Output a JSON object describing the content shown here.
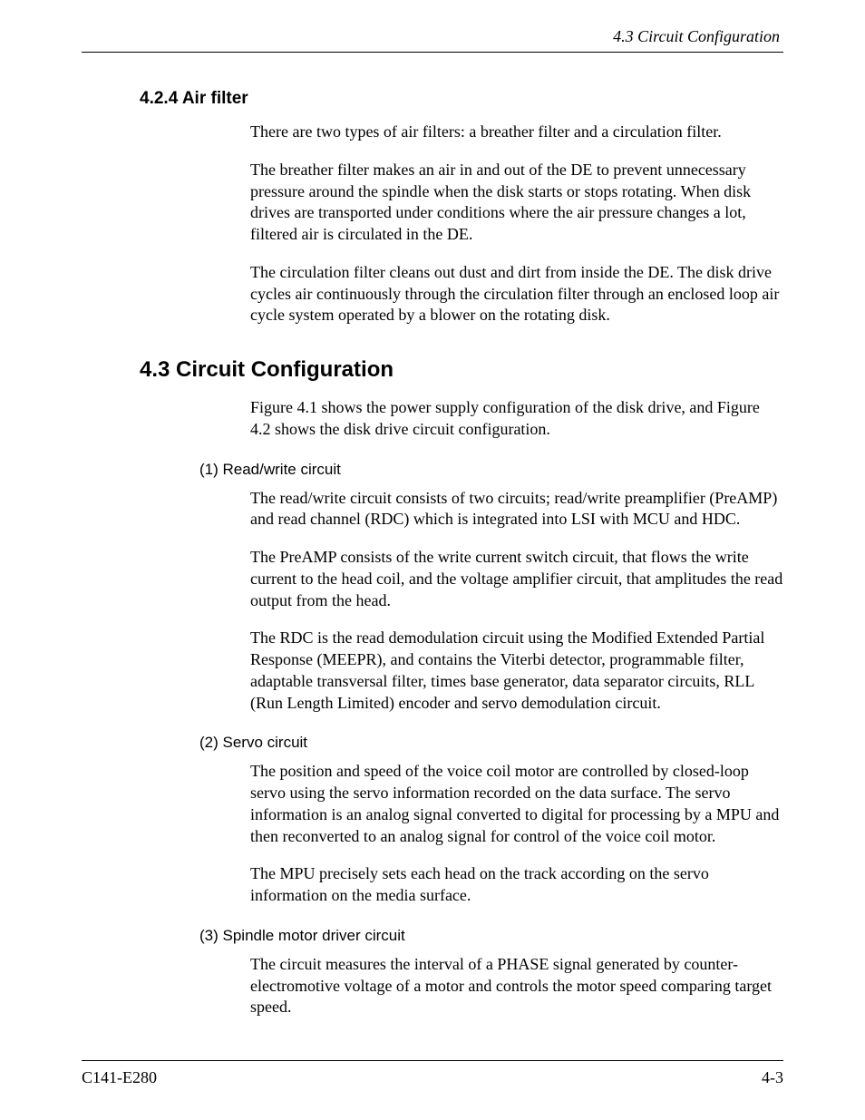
{
  "running_head": "4.3  Circuit Configuration",
  "section_424": {
    "heading": "4.2.4  Air filter",
    "p1": "There are two types of air filters:  a breather filter and a circulation filter.",
    "p2": "The breather filter makes an air in and out of the DE to prevent unnecessary pressure around the spindle when the disk starts or stops rotating.  When disk drives are transported under conditions where the air pressure changes a lot, filtered air is circulated in the DE.",
    "p3": "The circulation filter cleans out dust and dirt from inside the DE.  The disk drive cycles air continuously through the circulation filter through an enclosed loop air cycle system operated by a blower on the rotating disk."
  },
  "section_43": {
    "heading": "4.3  Circuit Configuration",
    "intro": "Figure 4.1 shows the power supply configuration of the disk drive, and Figure 4.2 shows the disk drive circuit configuration.",
    "item1": {
      "heading": "(1)  Read/write circuit",
      "p1": "The read/write circuit consists of two circuits; read/write preamplifier (PreAMP) and read channel (RDC) which is integrated into LSI with MCU and HDC.",
      "p2": "The PreAMP consists of the write current switch circuit, that flows the write current to the head coil, and the voltage amplifier circuit, that amplitudes the read output from the head.",
      "p3": "The RDC is the read demodulation circuit using the Modified Extended Partial Response (MEEPR), and contains the Viterbi detector, programmable filter, adaptable transversal filter, times base generator, data separator circuits, RLL (Run Length Limited) encoder and servo demodulation circuit."
    },
    "item2": {
      "heading": "(2)  Servo circuit",
      "p1": "The position and speed of the voice coil motor are controlled by closed-loop servo using the servo information recorded on the data surface.  The servo information is an analog signal converted to digital for processing by a MPU and then reconverted to an analog signal for control of the voice coil motor.",
      "p2": "The MPU precisely sets each head on the track according on the servo information on the media surface."
    },
    "item3": {
      "heading": "(3)  Spindle motor driver circuit",
      "p1": "The circuit measures the interval of a PHASE signal generated by counter-electromotive voltage of a motor and controls the motor speed comparing target speed."
    }
  },
  "footer": {
    "left": "C141-E280",
    "right": "4-3"
  }
}
